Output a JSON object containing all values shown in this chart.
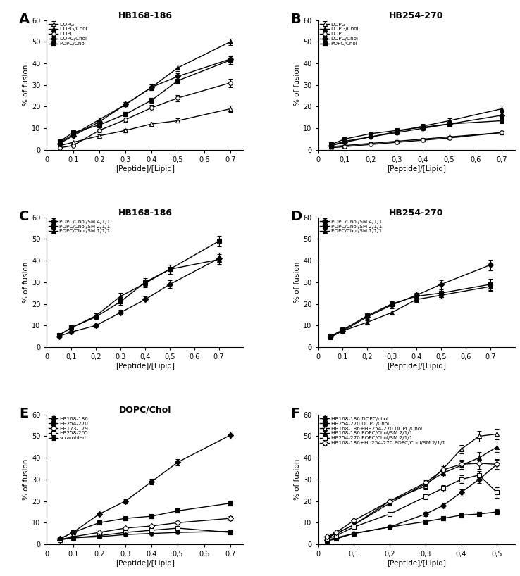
{
  "panel_A": {
    "title": "HB168-186",
    "xlabel": "[Peptide]/[Lipid]",
    "ylabel": "% of fusion",
    "xlim": [
      0,
      0.75
    ],
    "ylim": [
      0,
      60
    ],
    "xticks": [
      0,
      0.1,
      0.2,
      0.3,
      0.4,
      0.5,
      0.6,
      0.7
    ],
    "xtick_labels": [
      "0",
      "0,1",
      "0,2",
      "0,3",
      "0,4",
      "0,5",
      "0,6",
      "0,7"
    ],
    "yticks": [
      0,
      10,
      20,
      30,
      40,
      50,
      60
    ],
    "series": [
      {
        "name": "DOPG",
        "x": [
          0.05,
          0.1,
          0.2,
          0.3,
          0.4,
          0.5,
          0.7
        ],
        "y": [
          2.0,
          3.5,
          6.5,
          9.0,
          12.0,
          13.5,
          19.0
        ],
        "yerr": [
          0.4,
          0.4,
          0.5,
          0.8,
          0.8,
          1.0,
          1.5
        ],
        "marker": "^",
        "fillstyle": "none"
      },
      {
        "name": "DOPG/Chol",
        "x": [
          0.05,
          0.1,
          0.2,
          0.3,
          0.4,
          0.5,
          0.7
        ],
        "y": [
          3.5,
          7.0,
          14.0,
          21.0,
          29.0,
          38.0,
          50.0
        ],
        "yerr": [
          0.4,
          0.5,
          0.8,
          1.0,
          1.2,
          1.5,
          1.5
        ],
        "marker": "^",
        "fillstyle": "full"
      },
      {
        "name": "DOPC",
        "x": [
          0.05,
          0.1,
          0.2,
          0.3,
          0.4,
          0.5,
          0.7
        ],
        "y": [
          1.0,
          2.0,
          9.0,
          14.0,
          19.5,
          24.0,
          31.0
        ],
        "yerr": [
          0.3,
          0.4,
          0.8,
          1.0,
          1.2,
          1.5,
          2.0
        ],
        "marker": "o",
        "fillstyle": "none"
      },
      {
        "name": "DOPC/Chol",
        "x": [
          0.05,
          0.1,
          0.2,
          0.3,
          0.4,
          0.5,
          0.7
        ],
        "y": [
          3.0,
          6.5,
          13.0,
          21.0,
          29.0,
          34.0,
          42.0
        ],
        "yerr": [
          0.4,
          0.5,
          0.8,
          1.0,
          1.2,
          1.5,
          1.5
        ],
        "marker": "D",
        "fillstyle": "full"
      },
      {
        "name": "POPC/Chol",
        "x": [
          0.05,
          0.1,
          0.2,
          0.3,
          0.4,
          0.5,
          0.7
        ],
        "y": [
          4.0,
          8.0,
          11.5,
          16.5,
          23.0,
          32.0,
          41.5
        ],
        "yerr": [
          0.5,
          0.6,
          0.8,
          1.0,
          1.2,
          1.5,
          1.8
        ],
        "marker": "s",
        "fillstyle": "full"
      }
    ]
  },
  "panel_B": {
    "title": "HB254-270",
    "xlabel": "[Peptide]/[Lipid]",
    "ylabel": "% of fusion",
    "xlim": [
      0,
      0.75
    ],
    "ylim": [
      0,
      60
    ],
    "xticks": [
      0,
      0.1,
      0.2,
      0.3,
      0.4,
      0.5,
      0.6,
      0.7
    ],
    "xtick_labels": [
      "0",
      "0,1",
      "0,2",
      "0,3",
      "0,4",
      "0,5",
      "0,6",
      "0,7"
    ],
    "yticks": [
      0,
      10,
      20,
      30,
      40,
      50,
      60
    ],
    "series": [
      {
        "name": "DOPG",
        "x": [
          0.05,
          0.1,
          0.2,
          0.3,
          0.4,
          0.5,
          0.7
        ],
        "y": [
          1.5,
          2.0,
          3.0,
          4.0,
          5.0,
          6.0,
          8.0
        ],
        "yerr": [
          0.3,
          0.3,
          0.4,
          0.5,
          0.5,
          0.6,
          0.8
        ],
        "marker": "^",
        "fillstyle": "none"
      },
      {
        "name": "DOPG/Chol",
        "x": [
          0.05,
          0.1,
          0.2,
          0.3,
          0.4,
          0.5,
          0.7
        ],
        "y": [
          2.0,
          4.0,
          6.0,
          8.5,
          11.0,
          13.5,
          19.0
        ],
        "yerr": [
          0.3,
          0.4,
          0.6,
          0.8,
          1.0,
          1.2,
          1.5
        ],
        "marker": "^",
        "fillstyle": "full"
      },
      {
        "name": "DOPC",
        "x": [
          0.05,
          0.1,
          0.2,
          0.3,
          0.4,
          0.5,
          0.7
        ],
        "y": [
          1.0,
          1.5,
          2.5,
          3.5,
          4.5,
          5.5,
          8.0
        ],
        "yerr": [
          0.2,
          0.3,
          0.4,
          0.5,
          0.5,
          0.6,
          0.8
        ],
        "marker": "o",
        "fillstyle": "none"
      },
      {
        "name": "DOPC/Chol",
        "x": [
          0.05,
          0.1,
          0.2,
          0.3,
          0.4,
          0.5,
          0.7
        ],
        "y": [
          2.0,
          3.5,
          6.0,
          8.0,
          10.0,
          12.0,
          16.0
        ],
        "yerr": [
          0.3,
          0.4,
          0.6,
          0.8,
          1.0,
          1.0,
          1.2
        ],
        "marker": "D",
        "fillstyle": "full"
      },
      {
        "name": "POPC/Chol",
        "x": [
          0.05,
          0.1,
          0.2,
          0.3,
          0.4,
          0.5,
          0.7
        ],
        "y": [
          2.5,
          5.0,
          7.5,
          9.0,
          10.5,
          12.0,
          13.5
        ],
        "yerr": [
          0.3,
          0.5,
          0.6,
          0.7,
          0.8,
          1.0,
          1.2
        ],
        "marker": "s",
        "fillstyle": "full"
      }
    ]
  },
  "panel_C": {
    "title": "HB168-186",
    "xlabel": "[Peptide]/[Lipid]",
    "ylabel": "% of fusion",
    "xlim": [
      0,
      0.8
    ],
    "ylim": [
      0,
      60
    ],
    "xticks": [
      0,
      0.1,
      0.2,
      0.3,
      0.4,
      0.5,
      0.6,
      0.7
    ],
    "xtick_labels": [
      "0",
      "0,1",
      "0,2",
      "0,3",
      "0,4",
      "0,5",
      "0,6",
      "0,7"
    ],
    "yticks": [
      0,
      10,
      20,
      30,
      40,
      50,
      60
    ],
    "series": [
      {
        "name": "POPC/Chol/SM 4/1/1",
        "x": [
          0.05,
          0.1,
          0.2,
          0.3,
          0.4,
          0.5,
          0.7
        ],
        "y": [
          5.0,
          7.0,
          10.0,
          16.0,
          22.0,
          29.0,
          41.0
        ],
        "yerr": [
          0.5,
          0.6,
          0.8,
          1.2,
          1.5,
          1.8,
          2.5
        ],
        "marker": "D",
        "fillstyle": "full"
      },
      {
        "name": "POPC/Chol/SM 2/1/1",
        "x": [
          0.05,
          0.1,
          0.2,
          0.3,
          0.4,
          0.5,
          0.7
        ],
        "y": [
          5.5,
          9.0,
          14.0,
          21.0,
          30.0,
          36.0,
          49.0
        ],
        "yerr": [
          0.5,
          0.7,
          1.0,
          1.5,
          1.8,
          2.0,
          2.5
        ],
        "marker": "s",
        "fillstyle": "full"
      },
      {
        "name": "POPC/Chol/SM 1/1/1",
        "x": [
          0.05,
          0.1,
          0.2,
          0.3,
          0.4,
          0.5,
          0.7
        ],
        "y": [
          5.5,
          9.0,
          14.5,
          23.5,
          29.5,
          36.0,
          40.5
        ],
        "yerr": [
          0.5,
          0.7,
          1.0,
          1.5,
          1.8,
          2.0,
          2.5
        ],
        "marker": "^",
        "fillstyle": "full"
      }
    ]
  },
  "panel_D": {
    "title": "HB254-270",
    "xlabel": "[Peptide]/[Lipid]",
    "ylabel": "% of fusion",
    "xlim": [
      0,
      0.8
    ],
    "ylim": [
      0,
      60
    ],
    "xticks": [
      0,
      0.1,
      0.2,
      0.3,
      0.4,
      0.5,
      0.6,
      0.7
    ],
    "xtick_labels": [
      "0",
      "0,1",
      "0,2",
      "0,3",
      "0,4",
      "0,5",
      "0,6",
      "0,7"
    ],
    "yticks": [
      0,
      10,
      20,
      30,
      40,
      50,
      60
    ],
    "series": [
      {
        "name": "POPC/Chol/SM 4/1/1",
        "x": [
          0.05,
          0.1,
          0.2,
          0.3,
          0.4,
          0.5,
          0.7
        ],
        "y": [
          5.0,
          7.5,
          14.0,
          19.5,
          24.0,
          29.0,
          38.0
        ],
        "yerr": [
          0.5,
          0.6,
          1.0,
          1.5,
          1.8,
          2.0,
          2.5
        ],
        "marker": "D",
        "fillstyle": "full"
      },
      {
        "name": "POPC/Chol/SM 2/1/1",
        "x": [
          0.05,
          0.1,
          0.2,
          0.3,
          0.4,
          0.5,
          0.7
        ],
        "y": [
          5.0,
          8.0,
          14.5,
          20.0,
          23.5,
          25.0,
          29.0
        ],
        "yerr": [
          0.5,
          0.6,
          1.0,
          1.2,
          1.5,
          1.8,
          2.5
        ],
        "marker": "s",
        "fillstyle": "full"
      },
      {
        "name": "POPC/Chol/SM 1/1/1",
        "x": [
          0.05,
          0.1,
          0.2,
          0.3,
          0.4,
          0.5,
          0.7
        ],
        "y": [
          4.5,
          7.5,
          11.5,
          16.0,
          22.0,
          24.0,
          28.0
        ],
        "yerr": [
          0.4,
          0.6,
          0.8,
          1.0,
          1.2,
          1.5,
          2.0
        ],
        "marker": "^",
        "fillstyle": "full"
      }
    ]
  },
  "panel_E": {
    "title": "DOPC/Chol",
    "xlabel": "[Peptide]/[Lipid]",
    "ylabel": "% of fusion",
    "xlim": [
      0,
      0.75
    ],
    "ylim": [
      0,
      60
    ],
    "xticks": [
      0,
      0.1,
      0.2,
      0.3,
      0.4,
      0.5,
      0.6,
      0.7
    ],
    "xtick_labels": [
      "0",
      "0,1",
      "0,2",
      "0,3",
      "0,4",
      "0,5",
      "0,6",
      "0,7"
    ],
    "yticks": [
      0,
      10,
      20,
      30,
      40,
      50,
      60
    ],
    "series": [
      {
        "name": "HB168-186",
        "x": [
          0.05,
          0.1,
          0.2,
          0.3,
          0.4,
          0.5,
          0.7
        ],
        "y": [
          2.5,
          5.5,
          14.0,
          20.0,
          29.0,
          38.0,
          50.5
        ],
        "yerr": [
          0.3,
          0.5,
          0.8,
          1.0,
          1.2,
          1.5,
          1.5
        ],
        "marker": "D",
        "fillstyle": "full"
      },
      {
        "name": "HB254-270",
        "x": [
          0.05,
          0.1,
          0.2,
          0.3,
          0.4,
          0.5,
          0.7
        ],
        "y": [
          2.5,
          5.5,
          10.0,
          12.0,
          13.0,
          15.5,
          19.0
        ],
        "yerr": [
          0.3,
          0.5,
          0.7,
          0.8,
          0.9,
          1.0,
          1.2
        ],
        "marker": "s",
        "fillstyle": "full"
      },
      {
        "name": "HB173-179",
        "x": [
          0.05,
          0.1,
          0.2,
          0.3,
          0.4,
          0.5,
          0.7
        ],
        "y": [
          2.0,
          3.5,
          5.5,
          7.5,
          8.5,
          10.0,
          12.0
        ],
        "yerr": [
          0.3,
          0.4,
          0.5,
          0.6,
          0.7,
          0.8,
          1.0
        ],
        "marker": "D",
        "fillstyle": "none"
      },
      {
        "name": "HB258-265",
        "x": [
          0.05,
          0.1,
          0.2,
          0.3,
          0.4,
          0.5,
          0.7
        ],
        "y": [
          2.0,
          3.0,
          4.0,
          5.5,
          6.5,
          7.5,
          5.5
        ],
        "yerr": [
          0.3,
          0.4,
          0.5,
          0.6,
          0.7,
          0.8,
          1.0
        ],
        "marker": "s",
        "fillstyle": "none"
      },
      {
        "name": "scrambled",
        "x": [
          0.05,
          0.1,
          0.2,
          0.3,
          0.4,
          0.5,
          0.7
        ],
        "y": [
          2.5,
          3.0,
          3.5,
          4.5,
          5.0,
          5.5,
          6.0
        ],
        "yerr": [
          0.2,
          0.3,
          0.4,
          0.5,
          0.5,
          0.6,
          0.7
        ],
        "marker": "o",
        "fillstyle": "full"
      }
    ]
  },
  "panel_F": {
    "title": "",
    "xlabel": "[Peptide]/[Lipid]",
    "ylabel": "% of fusion",
    "xlim": [
      0,
      0.55
    ],
    "ylim": [
      0,
      60
    ],
    "xticks": [
      0,
      0.1,
      0.2,
      0.3,
      0.4,
      0.5
    ],
    "xtick_labels": [
      "0",
      "0,1",
      "0,2",
      "0,3",
      "0,4",
      "0,5"
    ],
    "yticks": [
      0,
      10,
      20,
      30,
      40,
      50,
      60
    ],
    "series": [
      {
        "name": "HB168-186 DOPC/chol",
        "x": [
          0.025,
          0.05,
          0.1,
          0.2,
          0.3,
          0.35,
          0.4,
          0.45,
          0.5
        ],
        "y": [
          2.0,
          3.0,
          5.0,
          8.0,
          14.0,
          18.0,
          24.0,
          30.0,
          37.0
        ],
        "yerr": [
          0.3,
          0.3,
          0.5,
          0.7,
          1.0,
          1.2,
          1.5,
          1.8,
          2.0
        ],
        "marker": "D",
        "fillstyle": "full"
      },
      {
        "name": "HB254-270 DOPC/Chol",
        "x": [
          0.025,
          0.05,
          0.1,
          0.2,
          0.3,
          0.35,
          0.4,
          0.45,
          0.5
        ],
        "y": [
          1.5,
          2.5,
          5.0,
          8.0,
          10.5,
          12.0,
          13.5,
          14.0,
          15.0
        ],
        "yerr": [
          0.2,
          0.3,
          0.5,
          0.7,
          0.8,
          1.0,
          1.0,
          1.0,
          1.2
        ],
        "marker": "s",
        "fillstyle": "full"
      },
      {
        "name": "HB168-186+HB254-270 DOPC/Chol",
        "x": [
          0.025,
          0.05,
          0.1,
          0.2,
          0.3,
          0.35,
          0.4,
          0.45,
          0.5
        ],
        "y": [
          3.0,
          5.0,
          9.0,
          20.0,
          27.0,
          35.0,
          44.0,
          50.0,
          51.0
        ],
        "yerr": [
          0.4,
          0.5,
          0.8,
          1.2,
          1.5,
          1.8,
          2.0,
          2.5,
          2.5
        ],
        "marker": "^",
        "fillstyle": "none"
      },
      {
        "name": "HB168-186 POPC/Chol/SM 2/1/1",
        "x": [
          0.025,
          0.05,
          0.1,
          0.2,
          0.3,
          0.35,
          0.4,
          0.45,
          0.5
        ],
        "y": [
          3.0,
          5.0,
          9.0,
          19.0,
          28.0,
          33.0,
          36.5,
          40.0,
          45.0
        ],
        "yerr": [
          0.4,
          0.5,
          0.8,
          1.2,
          1.5,
          1.8,
          2.0,
          2.5,
          2.5
        ],
        "marker": "^",
        "fillstyle": "full"
      },
      {
        "name": "HB254-270 POPC/Chol/SM 2/1/1",
        "x": [
          0.025,
          0.05,
          0.1,
          0.2,
          0.3,
          0.35,
          0.4,
          0.45,
          0.5
        ],
        "y": [
          2.5,
          4.0,
          8.0,
          14.0,
          22.0,
          26.0,
          30.0,
          32.0,
          24.0
        ],
        "yerr": [
          0.3,
          0.4,
          0.7,
          1.0,
          1.2,
          1.5,
          1.8,
          2.0,
          2.5
        ],
        "marker": "s",
        "fillstyle": "none"
      },
      {
        "name": "HB168-186+Hb254-270 POPC/Chol/SM 2/1/1",
        "x": [
          0.025,
          0.05,
          0.1,
          0.2,
          0.3,
          0.35,
          0.4,
          0.45,
          0.5
        ],
        "y": [
          3.5,
          5.5,
          11.0,
          20.0,
          28.5,
          34.5,
          37.0,
          37.5,
          37.0
        ],
        "yerr": [
          0.4,
          0.5,
          0.8,
          1.2,
          1.5,
          1.8,
          2.0,
          2.5,
          2.5
        ],
        "marker": "D",
        "fillstyle": "none"
      }
    ]
  },
  "panel_labels": [
    "A",
    "B",
    "C",
    "D",
    "E",
    "F"
  ],
  "color": "black",
  "markersize": 4,
  "linewidth": 1.0,
  "capsize": 2,
  "elinewidth": 0.8
}
